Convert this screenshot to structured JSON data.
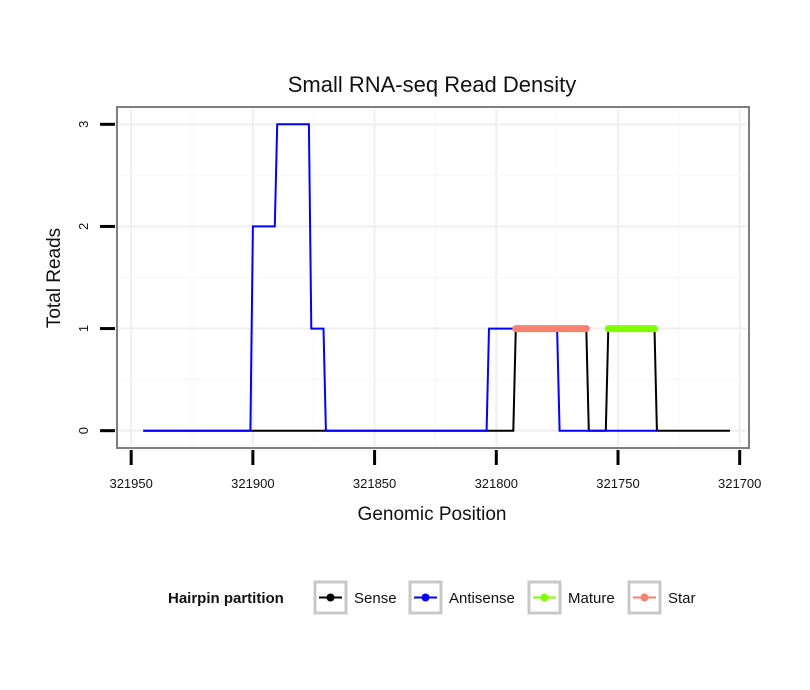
{
  "chart_data": {
    "type": "line",
    "title": "Small RNA-seq Read Density",
    "xlabel": "Genomic Position",
    "ylabel": "Total Reads",
    "x_reversed": true,
    "xlim": [
      321955,
      321697
    ],
    "ylim": [
      -0.15,
      3.15
    ],
    "x_ticks": [
      321950,
      321900,
      321850,
      321800,
      321750,
      321700
    ],
    "x_tick_labels": [
      "321950",
      "321900",
      "321850",
      "321800",
      "321750",
      "321700"
    ],
    "y_ticks": [
      0,
      1,
      2,
      3
    ],
    "y_tick_labels": [
      "0",
      "1",
      "2",
      "3"
    ],
    "grid": true,
    "legend": {
      "title": "Hairpin partition",
      "position": "bottom",
      "entries": [
        "Sense",
        "Antisense",
        "Mature",
        "Star"
      ]
    },
    "series": [
      {
        "name": "Sense",
        "color": "#000000",
        "width": "thin",
        "points": [
          [
            321945,
            0
          ],
          [
            321793,
            0
          ],
          [
            321792,
            1
          ],
          [
            321763,
            1
          ],
          [
            321762,
            0
          ],
          [
            321755,
            0
          ],
          [
            321754,
            1
          ],
          [
            321735,
            1
          ],
          [
            321734,
            0
          ],
          [
            321704,
            0
          ]
        ]
      },
      {
        "name": "Antisense",
        "color": "#0000ff",
        "width": "thin",
        "points": [
          [
            321945,
            0
          ],
          [
            321901,
            0
          ],
          [
            321900,
            2
          ],
          [
            321891,
            2
          ],
          [
            321890,
            3
          ],
          [
            321877,
            3
          ],
          [
            321876,
            1
          ],
          [
            321871,
            1
          ],
          [
            321870,
            0
          ],
          [
            321804,
            0
          ],
          [
            321803,
            1
          ],
          [
            321775,
            1
          ],
          [
            321774,
            0
          ],
          [
            321734,
            0
          ]
        ]
      },
      {
        "name": "Mature",
        "color": "#7fff00",
        "width": "thick",
        "points": [
          [
            321754,
            1
          ],
          [
            321735,
            1
          ]
        ]
      },
      {
        "name": "Star",
        "color": "#fa8072",
        "width": "thick",
        "points": [
          [
            321792,
            1
          ],
          [
            321763,
            1
          ]
        ]
      }
    ]
  }
}
